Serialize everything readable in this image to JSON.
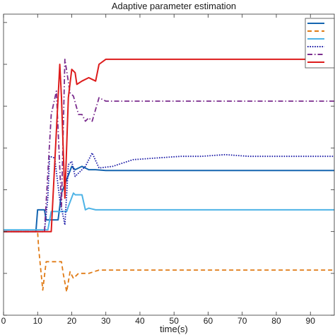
{
  "chart_data": {
    "type": "line",
    "title": "Adaptive parameter estimation",
    "xlabel": "time(s)",
    "ylabel": "",
    "xlim": [
      0,
      97
    ],
    "x_ticks": [
      0,
      10,
      20,
      30,
      40,
      50,
      60,
      70,
      80,
      90
    ],
    "ylim": [
      -0.5,
      1.3
    ],
    "y_ticks_shown": [],
    "grid": false,
    "legend_position": "top-right",
    "colors": {
      "orange": "#e07b16",
      "lightblue": "#4db3e6",
      "navy": "#1a1aa6",
      "purple": "#7b2d8e",
      "red": "#dd1c1c",
      "blue": "#1565b0"
    },
    "series": [
      {
        "name": "",
        "color": "#1565b0",
        "dash": "solid",
        "x": [
          0,
          9.5,
          10,
          12,
          12.5,
          16,
          17,
          20,
          21,
          23,
          25,
          27,
          30,
          97
        ],
        "y": [
          0,
          0,
          0.13,
          0.13,
          0.07,
          0.07,
          0.23,
          0.39,
          0.37,
          0.39,
          0.37,
          0.37,
          0.365,
          0.365
        ]
      },
      {
        "name": "",
        "color": "#e07b16",
        "dash": "dashed",
        "x": [
          0,
          10,
          10.3,
          11.5,
          12.5,
          17,
          17.5,
          18.5,
          19.5,
          20.5,
          22,
          25,
          28,
          97
        ],
        "y": [
          0,
          0,
          -0.1,
          -0.35,
          -0.18,
          -0.18,
          -0.25,
          -0.36,
          -0.24,
          -0.28,
          -0.25,
          -0.25,
          -0.23,
          -0.23
        ]
      },
      {
        "name": "",
        "color": "#4db3e6",
        "dash": "solid",
        "x": [
          0,
          13,
          14,
          16,
          17,
          18.5,
          19,
          20.5,
          21,
          23,
          24,
          25,
          27,
          30,
          97
        ],
        "y": [
          0.01,
          0.01,
          0.12,
          0.12,
          0.12,
          0.12,
          0.15,
          0.23,
          0.22,
          0.22,
          0.13,
          0.14,
          0.13,
          0.13,
          0.13
        ]
      },
      {
        "name": "",
        "color": "#1a1aa6",
        "dash": "dotted",
        "x": [
          0,
          12,
          13,
          13.5,
          15,
          16.5,
          18,
          19,
          20,
          21,
          24,
          26,
          28,
          32,
          38,
          45,
          52,
          58,
          65,
          72,
          78,
          85,
          97
        ],
        "y": [
          0,
          0,
          0.2,
          0.45,
          0.44,
          0.19,
          0.04,
          0.4,
          0.42,
          0.33,
          0.39,
          0.47,
          0.38,
          0.39,
          0.43,
          0.44,
          0.45,
          0.45,
          0.46,
          0.45,
          0.45,
          0.45,
          0.45
        ]
      },
      {
        "name": "",
        "color": "#7b2d8e",
        "dash": "dashdot",
        "x": [
          0,
          12,
          14,
          15.5,
          17,
          18,
          19.5,
          20.5,
          22,
          23,
          24,
          25,
          26,
          28,
          30,
          97
        ],
        "y": [
          0,
          0,
          0.7,
          0.84,
          0.15,
          1.03,
          0.83,
          0.81,
          0.7,
          0.7,
          0.66,
          0.68,
          0.66,
          0.8,
          0.78,
          0.78
        ]
      },
      {
        "name": "",
        "color": "#dd1c1c",
        "dash": "solid",
        "x": [
          0,
          14,
          16,
          16.5,
          17,
          18,
          19,
          20,
          21,
          21.5,
          23,
          25,
          27,
          28,
          30,
          97
        ],
        "y": [
          0,
          0,
          0.8,
          1.0,
          0.8,
          0.2,
          0.8,
          0.97,
          0.95,
          0.88,
          0.9,
          0.92,
          0.9,
          1.0,
          1.03,
          1.03
        ]
      }
    ]
  }
}
